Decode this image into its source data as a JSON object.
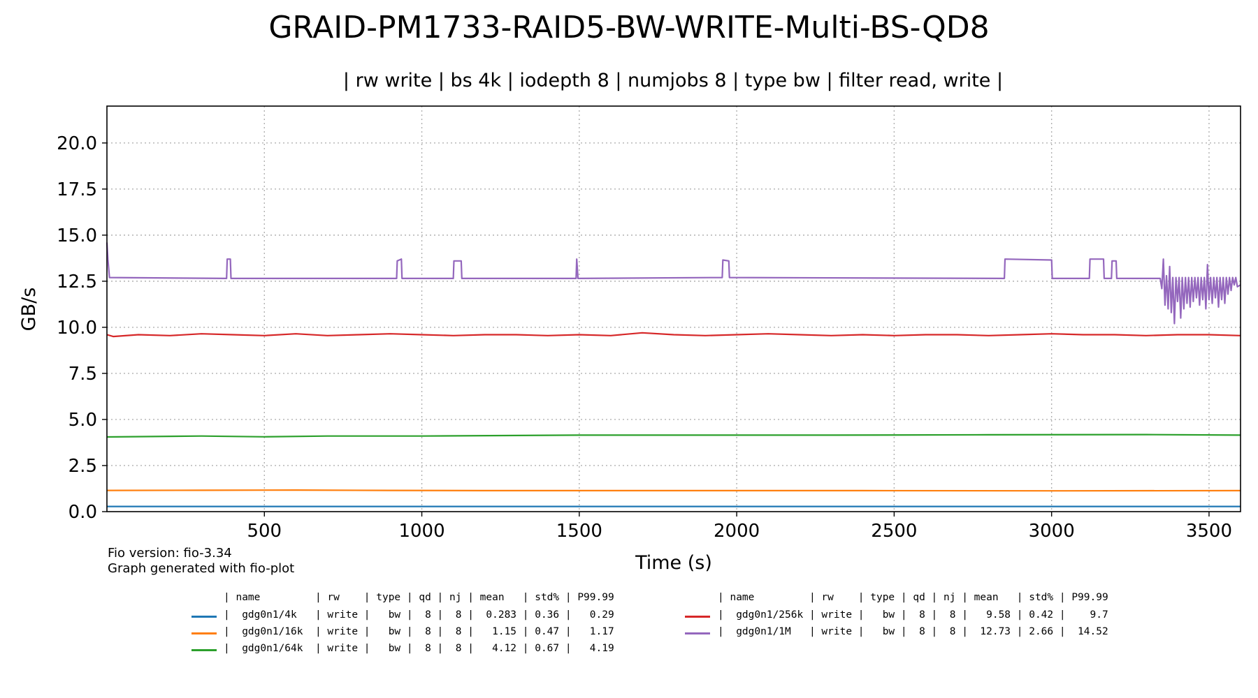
{
  "chart_data": {
    "type": "line",
    "title": "GRAID-PM1733-RAID5-BW-WRITE-Multi-BS-QD8",
    "subtitle": "| rw write | bs 4k | iodepth 8 | numjobs 8 | type bw | filter read, write |",
    "xlabel": "Time (s)",
    "ylabel": "GB/s",
    "xlim": [
      0,
      3600
    ],
    "ylim": [
      0,
      22
    ],
    "xticks": [
      500,
      1000,
      1500,
      2000,
      2500,
      3000,
      3500
    ],
    "yticks": [
      0.0,
      2.5,
      5.0,
      7.5,
      10.0,
      12.5,
      15.0,
      17.5,
      20.0
    ],
    "ytick_labels": [
      "0.0",
      "2.5",
      "5.0",
      "7.5",
      "10.0",
      "12.5",
      "15.0",
      "17.5",
      "20.0"
    ],
    "xtick_labels": [
      "500",
      "1000",
      "1500",
      "2000",
      "2500",
      "3000",
      "3500"
    ],
    "grid": true,
    "legend_placement": "below",
    "series": [
      {
        "name": "gdg0n1/4k",
        "color": "#1f77b4",
        "points": [
          [
            0,
            0.28
          ],
          [
            600,
            0.28
          ],
          [
            1200,
            0.28
          ],
          [
            1800,
            0.28
          ],
          [
            2400,
            0.28
          ],
          [
            3000,
            0.28
          ],
          [
            3600,
            0.28
          ]
        ]
      },
      {
        "name": "gdg0n1/16k",
        "color": "#ff7f0e",
        "points": [
          [
            0,
            1.15
          ],
          [
            300,
            1.16
          ],
          [
            600,
            1.17
          ],
          [
            900,
            1.15
          ],
          [
            1200,
            1.14
          ],
          [
            1800,
            1.14
          ],
          [
            2400,
            1.14
          ],
          [
            3000,
            1.13
          ],
          [
            3600,
            1.14
          ]
        ]
      },
      {
        "name": "gdg0n1/64k",
        "color": "#2ca02c",
        "points": [
          [
            0,
            4.05
          ],
          [
            300,
            4.1
          ],
          [
            500,
            4.06
          ],
          [
            700,
            4.1
          ],
          [
            1000,
            4.1
          ],
          [
            1500,
            4.15
          ],
          [
            1900,
            4.15
          ],
          [
            2300,
            4.15
          ],
          [
            2800,
            4.17
          ],
          [
            3300,
            4.18
          ],
          [
            3600,
            4.15
          ]
        ]
      },
      {
        "name": "gdg0n1/256k",
        "color": "#d62728",
        "points": [
          [
            0,
            9.6
          ],
          [
            20,
            9.5
          ],
          [
            100,
            9.6
          ],
          [
            200,
            9.55
          ],
          [
            300,
            9.65
          ],
          [
            400,
            9.6
          ],
          [
            500,
            9.55
          ],
          [
            600,
            9.65
          ],
          [
            700,
            9.55
          ],
          [
            800,
            9.6
          ],
          [
            900,
            9.65
          ],
          [
            1000,
            9.6
          ],
          [
            1100,
            9.55
          ],
          [
            1200,
            9.6
          ],
          [
            1300,
            9.6
          ],
          [
            1400,
            9.55
          ],
          [
            1500,
            9.6
          ],
          [
            1600,
            9.55
          ],
          [
            1700,
            9.7
          ],
          [
            1800,
            9.6
          ],
          [
            1900,
            9.55
          ],
          [
            2000,
            9.6
          ],
          [
            2100,
            9.65
          ],
          [
            2200,
            9.6
          ],
          [
            2300,
            9.55
          ],
          [
            2400,
            9.6
          ],
          [
            2500,
            9.55
          ],
          [
            2600,
            9.6
          ],
          [
            2700,
            9.6
          ],
          [
            2800,
            9.55
          ],
          [
            2900,
            9.6
          ],
          [
            3000,
            9.65
          ],
          [
            3100,
            9.6
          ],
          [
            3200,
            9.6
          ],
          [
            3300,
            9.55
          ],
          [
            3400,
            9.6
          ],
          [
            3500,
            9.6
          ],
          [
            3600,
            9.55
          ]
        ]
      },
      {
        "name": "gdg0n1/1M",
        "color": "#9467bd",
        "points": [
          [
            0,
            14.6
          ],
          [
            3,
            13.7
          ],
          [
            8,
            12.7
          ],
          [
            380,
            12.65
          ],
          [
            382,
            13.7
          ],
          [
            392,
            13.7
          ],
          [
            394,
            12.65
          ],
          [
            920,
            12.65
          ],
          [
            922,
            13.6
          ],
          [
            935,
            13.7
          ],
          [
            937,
            12.65
          ],
          [
            1100,
            12.65
          ],
          [
            1102,
            13.6
          ],
          [
            1125,
            13.6
          ],
          [
            1127,
            12.65
          ],
          [
            1490,
            12.65
          ],
          [
            1492,
            13.7
          ],
          [
            1496,
            12.65
          ],
          [
            1954,
            12.7
          ],
          [
            1956,
            13.65
          ],
          [
            1975,
            13.6
          ],
          [
            1977,
            12.7
          ],
          [
            2850,
            12.65
          ],
          [
            2852,
            13.7
          ],
          [
            3000,
            13.65
          ],
          [
            3002,
            12.65
          ],
          [
            3120,
            12.65
          ],
          [
            3122,
            13.7
          ],
          [
            3165,
            13.7
          ],
          [
            3167,
            12.65
          ],
          [
            3190,
            12.65
          ],
          [
            3192,
            13.6
          ],
          [
            3205,
            13.6
          ],
          [
            3207,
            12.65
          ],
          [
            3345,
            12.65
          ],
          [
            3350,
            12.1
          ],
          [
            3355,
            13.7
          ],
          [
            3360,
            11.2
          ],
          [
            3365,
            12.8
          ],
          [
            3370,
            11.0
          ],
          [
            3375,
            13.3
          ],
          [
            3380,
            10.8
          ],
          [
            3385,
            12.7
          ],
          [
            3390,
            10.2
          ],
          [
            3395,
            12.7
          ],
          [
            3400,
            11.4
          ],
          [
            3405,
            12.7
          ],
          [
            3410,
            10.5
          ],
          [
            3415,
            12.7
          ],
          [
            3420,
            11.0
          ],
          [
            3425,
            12.7
          ],
          [
            3430,
            11.3
          ],
          [
            3435,
            12.7
          ],
          [
            3440,
            11.1
          ],
          [
            3445,
            12.7
          ],
          [
            3450,
            11.4
          ],
          [
            3455,
            12.7
          ],
          [
            3460,
            11.6
          ],
          [
            3465,
            12.7
          ],
          [
            3470,
            11.2
          ],
          [
            3475,
            12.7
          ],
          [
            3480,
            11.5
          ],
          [
            3485,
            12.7
          ],
          [
            3490,
            11.0
          ],
          [
            3495,
            13.4
          ],
          [
            3500,
            11.5
          ],
          [
            3505,
            12.7
          ],
          [
            3510,
            11.3
          ],
          [
            3515,
            12.7
          ],
          [
            3520,
            11.6
          ],
          [
            3525,
            12.7
          ],
          [
            3530,
            11.1
          ],
          [
            3535,
            12.7
          ],
          [
            3540,
            11.5
          ],
          [
            3545,
            12.7
          ],
          [
            3550,
            11.3
          ],
          [
            3555,
            12.7
          ],
          [
            3560,
            11.8
          ],
          [
            3565,
            12.7
          ],
          [
            3570,
            12.0
          ],
          [
            3575,
            12.7
          ],
          [
            3580,
            12.3
          ],
          [
            3585,
            12.7
          ],
          [
            3590,
            12.2
          ],
          [
            3600,
            12.3
          ]
        ]
      }
    ]
  },
  "footnote": {
    "line1": "Fio version: fio-3.34",
    "line2": "Graph generated with fio-plot"
  },
  "legend_table": {
    "left": {
      "header": "| name         | rw    | type | qd | nj | mean   | std% | P99.99",
      "rows": [
        {
          "color": "#1f77b4",
          "text": "|  gdg0n1/4k   | write |   bw |  8 |  8 |  0.283 | 0.36 |   0.29"
        },
        {
          "color": "#ff7f0e",
          "text": "|  gdg0n1/16k  | write |   bw |  8 |  8 |   1.15 | 0.47 |   1.17"
        },
        {
          "color": "#2ca02c",
          "text": "|  gdg0n1/64k  | write |   bw |  8 |  8 |   4.12 | 0.67 |   4.19"
        }
      ]
    },
    "right": {
      "header": "| name         | rw    | type | qd | nj | mean   | std% | P99.99",
      "rows": [
        {
          "color": "#d62728",
          "text": "|  gdg0n1/256k | write |   bw |  8 |  8 |   9.58 | 0.42 |    9.7"
        },
        {
          "color": "#9467bd",
          "text": "|  gdg0n1/1M   | write |   bw |  8 |  8 |  12.73 | 2.66 |  14.52"
        }
      ]
    }
  }
}
